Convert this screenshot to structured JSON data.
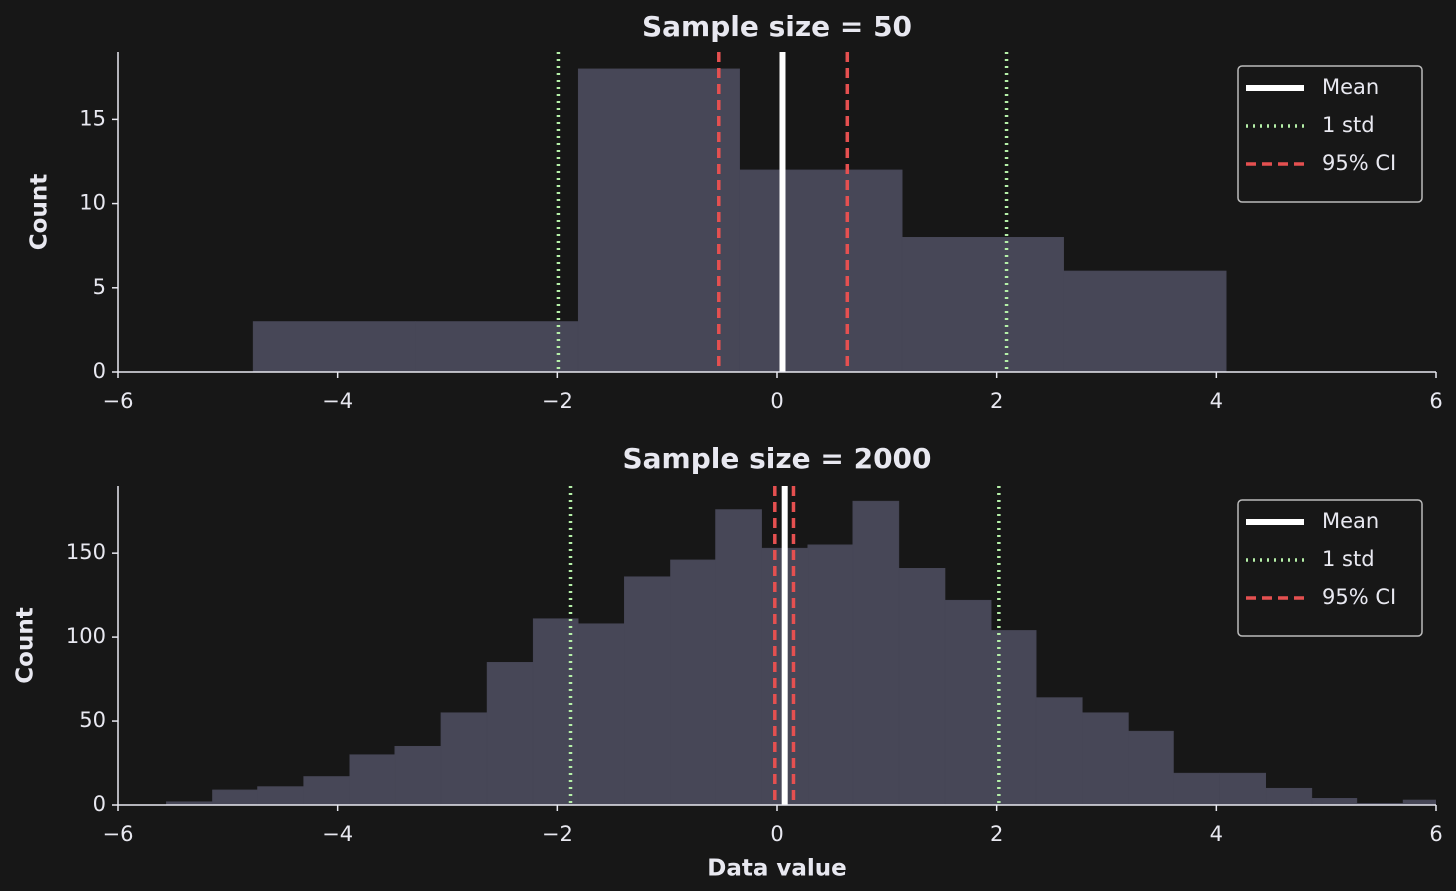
{
  "chart_data": [
    {
      "type": "histogram",
      "title": "Sample size = 50",
      "ylabel": "Count",
      "bins": [
        -4.77,
        -3.29,
        -1.81,
        -0.34,
        1.14,
        2.61,
        4.09
      ],
      "values": [
        3,
        3,
        18,
        12,
        8,
        6
      ],
      "color": "#474757",
      "xlim": [
        -6,
        6
      ],
      "xticks": [
        {
          "value": -6,
          "label": "−6"
        },
        {
          "value": -4,
          "label": "−4"
        },
        {
          "value": -2,
          "label": "−2"
        },
        0,
        2,
        4,
        6
      ],
      "ylim": [
        0,
        19
      ],
      "yticks": [
        0,
        5,
        10,
        15
      ],
      "reference_lines": [
        {
          "name": "Mean",
          "color": "#ffffff",
          "style": "solid",
          "values": [
            0.05
          ]
        },
        {
          "name": "1 std",
          "color": "#b5f0a8",
          "style": "dotted",
          "values": [
            -1.99,
            2.09
          ]
        },
        {
          "name": "95% CI",
          "color": "#e55050",
          "style": "dashed",
          "values": [
            -0.53,
            0.64
          ]
        }
      ],
      "legend": "upper right"
    },
    {
      "type": "histogram",
      "title": "Sample size = 2000",
      "ylabel": "Count",
      "xlabel": "Data value",
      "bins": [
        -5.56,
        -5.14,
        -4.73,
        -4.31,
        -3.89,
        -3.48,
        -3.06,
        -2.64,
        -2.22,
        -1.81,
        -1.39,
        -0.97,
        -0.56,
        -0.14,
        0.28,
        0.69,
        1.11,
        1.53,
        1.95,
        2.36,
        2.78,
        3.2,
        3.61,
        4.03,
        4.45,
        4.87,
        5.28,
        5.7,
        6.12
      ],
      "values": [
        2,
        9,
        11,
        17,
        30,
        35,
        55,
        85,
        111,
        108,
        136,
        146,
        176,
        153,
        155,
        181,
        141,
        122,
        104,
        64,
        55,
        44,
        19,
        19,
        10,
        4,
        1,
        3
      ],
      "color": "#474757",
      "xlim": [
        -6,
        6
      ],
      "xticks": [
        {
          "value": -6,
          "label": "−6"
        },
        {
          "value": -4,
          "label": "−4"
        },
        {
          "value": -2,
          "label": "−2"
        },
        0,
        2,
        4,
        6
      ],
      "ylim": [
        0,
        190
      ],
      "yticks": [
        0,
        50,
        100,
        150
      ],
      "reference_lines": [
        {
          "name": "Mean",
          "color": "#ffffff",
          "style": "solid",
          "values": [
            0.07
          ]
        },
        {
          "name": "1 std",
          "color": "#b5f0a8",
          "style": "dotted",
          "values": [
            -1.88,
            2.02
          ]
        },
        {
          "name": "95% CI",
          "color": "#e55050",
          "style": "dashed",
          "values": [
            -0.02,
            0.15
          ]
        }
      ],
      "legend": "upper right"
    }
  ]
}
